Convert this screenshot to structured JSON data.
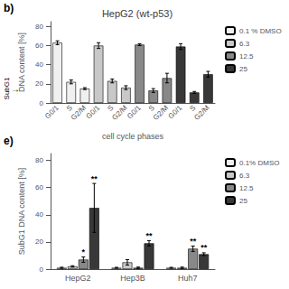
{
  "chart_data": [
    {
      "type": "bar",
      "title": "HepG2 (wt-p53)",
      "xlabel": "cell cycle phases",
      "ylabel": "DNA content [%]",
      "categories": [
        "G0/1",
        "S",
        "G2/M",
        "G0/1",
        "S",
        "G2/M",
        "G0/1",
        "S",
        "G2/M",
        "G0/1",
        "S",
        "G2/M"
      ],
      "series": [
        {
          "name": "0.1 % DMSO",
          "color": "#f0f0f0",
          "values": [
            63,
            22,
            15,
            null,
            null,
            null,
            null,
            null,
            null,
            null,
            null,
            null
          ],
          "errors": [
            2,
            2,
            1,
            null,
            null,
            null,
            null,
            null,
            null,
            null,
            null,
            null
          ]
        },
        {
          "name": "6.3",
          "color": "#c8c8c8",
          "values": [
            null,
            null,
            null,
            60,
            23,
            16,
            null,
            null,
            null,
            null,
            null,
            null
          ],
          "errors": [
            null,
            null,
            null,
            3,
            2,
            2,
            null,
            null,
            null,
            null,
            null,
            null
          ]
        },
        {
          "name": "12.5",
          "color": "#888888",
          "values": [
            null,
            null,
            null,
            null,
            null,
            null,
            61,
            13,
            26,
            null,
            null,
            null
          ],
          "errors": [
            null,
            null,
            null,
            null,
            null,
            null,
            1,
            2,
            5,
            null,
            null,
            null
          ]
        },
        {
          "name": "25",
          "color": "#383838",
          "values": [
            null,
            null,
            null,
            null,
            null,
            null,
            null,
            null,
            null,
            59,
            11,
            30
          ],
          "errors": [
            null,
            null,
            null,
            null,
            null,
            null,
            null,
            null,
            null,
            3,
            1,
            3
          ]
        }
      ],
      "ylim": [
        0,
        85
      ],
      "yticks": [
        0,
        20,
        40,
        60,
        80
      ],
      "grid": false,
      "legend": "right",
      "annotations": [
        "b)",
        "SubG1",
        "→"
      ]
    },
    {
      "type": "bar",
      "ylabel": "SubG1 DNA content [%]",
      "categories": [
        "HepG2",
        "Hep3B",
        "Huh7"
      ],
      "series": [
        {
          "name": "0.1% DMSO",
          "color": "#f0f0f0",
          "values": [
            1,
            1,
            1
          ],
          "errors": [
            0.4,
            0.3,
            0.3
          ],
          "stars": [
            null,
            null,
            null
          ]
        },
        {
          "name": "6.3",
          "color": "#c8c8c8",
          "values": [
            2,
            5,
            1
          ],
          "errors": [
            0.5,
            2,
            0.5
          ],
          "stars": [
            null,
            null,
            null
          ]
        },
        {
          "name": "12.5",
          "color": "#888888",
          "values": [
            7,
            1,
            15
          ],
          "errors": [
            2,
            0.5,
            2
          ],
          "stars": [
            "*",
            null,
            "**"
          ]
        },
        {
          "name": "25",
          "color": "#383838",
          "values": [
            45,
            19,
            11
          ],
          "errors": [
            18,
            2,
            1
          ],
          "stars": [
            "**",
            "**",
            "**"
          ]
        }
      ],
      "ylim": [
        0,
        85
      ],
      "yticks": [
        0,
        20,
        40,
        60,
        80
      ],
      "grid": false,
      "legend": "right",
      "annotations": [
        "e)"
      ]
    }
  ]
}
